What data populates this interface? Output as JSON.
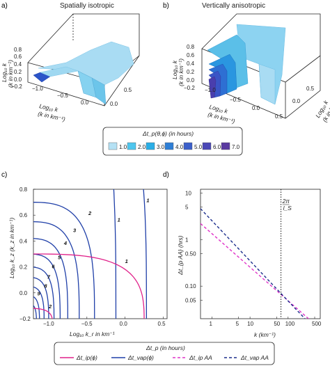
{
  "panels": {
    "a": {
      "letter": "a)",
      "title": "Spatially isotropic"
    },
    "b": {
      "letter": "b)",
      "title": "Vertically anisotropic"
    },
    "c": {
      "letter": "c)"
    },
    "d": {
      "letter": "d)"
    }
  },
  "surface_plots": {
    "zlabel_a": "Log₁₀ k",
    "zunit_a": "(k  in km⁻¹)",
    "xlabel_a": "Log₁₀ k",
    "xunit_a": "(k  in km⁻¹)",
    "ylabel_b": "Log₁₀ k",
    "yunit_b": "(k  in km⁻¹)",
    "z_ticks": [
      "0.8",
      "0.6",
      "0.4",
      "0.2",
      "0.0",
      "−0.2"
    ],
    "x_ticks": [
      "−1.0",
      "−0.5",
      "0.0",
      "0.5"
    ],
    "y_ticks": [
      "0.0",
      "0.5"
    ],
    "colors": {
      "light": "#a9dcf3",
      "mid": "#6cc5ea",
      "dark": "#2a53c9",
      "darkest": "#3b2f9a"
    }
  },
  "legend_top": {
    "title": "Δt_p(θ,ϕ) (in hours)",
    "items": [
      {
        "label": "1.0",
        "color": "#b5e1f4"
      },
      {
        "label": "2.0",
        "color": "#4fc6ee"
      },
      {
        "label": "3.0",
        "color": "#2aaee6"
      },
      {
        "label": "4.0",
        "color": "#2e7fd6"
      },
      {
        "label": "5.0",
        "color": "#3b5fca"
      },
      {
        "label": "6.0",
        "color": "#4a47b6"
      },
      {
        "label": "7.0",
        "color": "#5a3aa0"
      }
    ]
  },
  "chart_data": [
    {
      "type": "line",
      "panel": "c",
      "xlabel": "Log₁₀ k_r  in km⁻¹",
      "ylabel": "Log₁₀ k_z (k_z in km⁻¹)",
      "xlim": [
        -1.2,
        0.55
      ],
      "ylim": [
        -0.2,
        0.8
      ],
      "xticks": [
        -1.0,
        -0.5,
        0.0,
        0.5
      ],
      "xtick_labels": [
        "−1.0",
        "−0.5",
        "0.0",
        "0.5"
      ],
      "yticks": [
        -0.2,
        0.0,
        0.2,
        0.4,
        0.6,
        0.8
      ],
      "ytick_labels": [
        "−0.2",
        "0.0",
        "0.2",
        "0.4",
        "0.6",
        "0.8"
      ],
      "series": [
        {
          "kind": "vap",
          "color": "#1f3fa8",
          "label": "1",
          "rx": 0.28,
          "ry": 2.0,
          "tag_at": [
            0.28,
            0.7
          ]
        },
        {
          "kind": "vap",
          "color": "#1f3fa8",
          "label": "1",
          "rx": -0.12,
          "ry": 2.0,
          "tag_at": [
            -0.1,
            0.55
          ]
        },
        {
          "kind": "vap",
          "color": "#1f3fa8",
          "label": "2",
          "rx": -0.4,
          "ry": 0.7,
          "tag_at": [
            -0.48,
            0.6
          ]
        },
        {
          "kind": "vap",
          "color": "#1f3fa8",
          "label": "3",
          "rx": -0.6,
          "ry": 0.55,
          "tag_at": [
            -0.68,
            0.47
          ]
        },
        {
          "kind": "vap",
          "color": "#1f3fa8",
          "label": "4",
          "rx": -0.75,
          "ry": 0.42,
          "tag_at": [
            -0.8,
            0.37
          ]
        },
        {
          "kind": "vap",
          "color": "#1f3fa8",
          "label": "5",
          "rx": -0.85,
          "ry": 0.3,
          "tag_at": [
            -0.88,
            0.26
          ]
        },
        {
          "kind": "vap",
          "color": "#1f3fa8",
          "label": "6",
          "rx": -0.93,
          "ry": 0.2,
          "tag_at": [
            -0.96,
            0.19
          ]
        },
        {
          "kind": "vap",
          "color": "#1f3fa8",
          "label": "7",
          "rx": -1.0,
          "ry": 0.12,
          "tag_at": [
            -1.02,
            0.11
          ]
        },
        {
          "kind": "vap",
          "color": "#1f3fa8",
          "label": "8",
          "rx": -1.06,
          "ry": 0.05,
          "tag_at": [
            -1.06,
            0.04
          ]
        },
        {
          "kind": "vap",
          "color": "#1f3fa8",
          "label": "9",
          "rx": -1.12,
          "ry": -0.02,
          "tag_at": [
            -1.15,
            -0.02
          ]
        },
        {
          "kind": "vap",
          "color": "#1f3fa8",
          "label": "",
          "rx": -1.16,
          "ry": -0.08,
          "tag_at": null
        },
        {
          "kind": "ip",
          "color": "#e0218a",
          "label": "1",
          "rx": 0.25,
          "ry": 0.3,
          "tag_at": [
            0.0,
            0.23
          ]
        },
        {
          "kind": "ip",
          "color": "#e0218a",
          "label": "2",
          "rx": -0.95,
          "ry": -0.12,
          "tag_at": [
            -1.0,
            -0.12
          ]
        }
      ]
    },
    {
      "type": "line",
      "panel": "d",
      "xlabel": "k (km⁻¹)",
      "ylabel": "Δt_{p AA} (hrs)",
      "xscale": "log",
      "yscale": "log",
      "xlim": [
        0.5,
        700
      ],
      "ylim": [
        0.02,
        12
      ],
      "xticks": [
        1,
        5,
        10,
        50,
        100,
        500
      ],
      "xtick_labels": [
        "1",
        "5",
        "10",
        "50",
        "100",
        "500"
      ],
      "yticks": [
        0.05,
        0.1,
        0.5,
        1,
        5,
        10
      ],
      "ytick_labels": [
        "0.05",
        "0.10",
        "0.50",
        "1",
        "5",
        "10"
      ],
      "vline": {
        "x": 65,
        "label_top": "2π",
        "label_bottom": "l_S"
      },
      "series": [
        {
          "name": "Δt_{ip AA}",
          "style": "dashed",
          "color": "#e033c8",
          "x": [
            0.5,
            700
          ],
          "y": [
            2.2,
            0.012
          ]
        },
        {
          "name": "Δt_{vap AA}",
          "style": "dashed",
          "color": "#1a2d8c",
          "x": [
            0.5,
            700
          ],
          "y": [
            4.6,
            0.009
          ]
        }
      ]
    }
  ],
  "legend_bottom": {
    "title": "Δt_p (in hours)",
    "items": [
      {
        "label": "Δt_ip(ϕ)",
        "color": "#e0218a",
        "dash": "none"
      },
      {
        "label": "Δt_vap(ϕ)",
        "color": "#1f3fa8",
        "dash": "none"
      },
      {
        "label": "Δt_ip AA",
        "color": "#e033c8",
        "dash": "4 3"
      },
      {
        "label": "Δt_vap AA",
        "color": "#1a2d8c",
        "dash": "4 3"
      }
    ]
  }
}
